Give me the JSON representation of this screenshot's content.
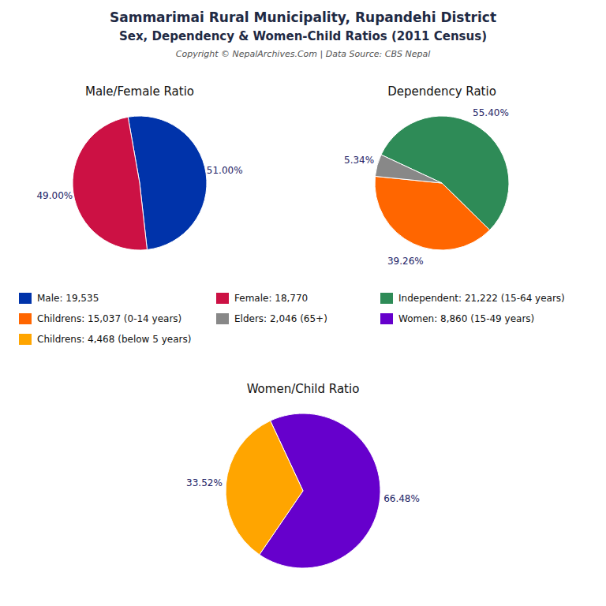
{
  "title": "Sammarimai Rural Municipality, Rupandehi District",
  "subtitle": "Sex, Dependency & Women-Child Ratios (2011 Census)",
  "annotations": [
    "Copyright © NepalArchives.Com | Data Source: CBS Nepal"
  ],
  "chart_data": [
    {
      "type": "pie",
      "title": "Male/Female Ratio",
      "categories": [
        "Male: 19,535",
        "Female: 18,770"
      ],
      "values": [
        51.0,
        49.0
      ],
      "value_labels": [
        "51.00%",
        "49.00%"
      ],
      "colors": [
        "#0033AA",
        "#CC1144"
      ],
      "data_labels": true,
      "legend": "center"
    },
    {
      "type": "pie",
      "title": "Dependency Ratio",
      "categories": [
        "Independent: 21,222 (15-64 years)",
        "Childrens: 15,037 (0-14 years)",
        "Elders: 2,046 (65+)"
      ],
      "values": [
        55.4,
        39.26,
        5.34
      ],
      "value_labels": [
        "55.40%",
        "39.26%",
        "5.34%"
      ],
      "colors": [
        "#2E8B57",
        "#FF6600",
        "#888888"
      ],
      "data_labels": true,
      "legend": "center"
    },
    {
      "type": "pie",
      "title": "Women/Child Ratio",
      "categories": [
        "Women: 8,860 (15-49 years)",
        "Childrens: 4,468 (below 5 years)"
      ],
      "values": [
        66.48,
        33.52
      ],
      "value_labels": [
        "66.48%",
        "33.52%"
      ],
      "colors": [
        "#6600CC",
        "#FFA500"
      ],
      "data_labels": true,
      "legend": "center"
    }
  ]
}
